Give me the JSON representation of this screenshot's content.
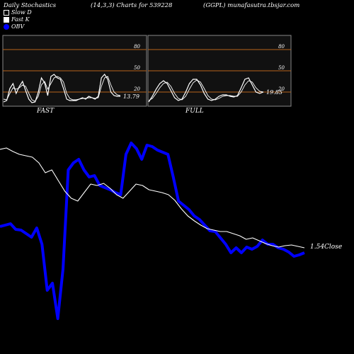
{
  "header": {
    "left": "Daily Stochastics",
    "center": "(14,3,3) Charts for 539228",
    "right": "(GGPL) munafasutra.tbsjar.com"
  },
  "legend": {
    "items": [
      {
        "label": "Slow  D",
        "swatch": "black"
      },
      {
        "label": "Fast K",
        "swatch": "white"
      },
      {
        "label": "OBV",
        "swatch": "blue"
      }
    ]
  },
  "colors": {
    "background": "#000000",
    "panel_fill": "#111111",
    "panel_border": "#888888",
    "level_line": "#b8621a",
    "price_line": "#ffffff",
    "obv_line": "#0000ff"
  },
  "chart_data": [
    {
      "type": "line",
      "panel": "fast",
      "title": "FAST",
      "yticks": [
        80,
        50,
        20
      ],
      "ylim": [
        0,
        100
      ],
      "last_value_label": "13.79",
      "series": [
        {
          "values": [
            6,
            8,
            25,
            32,
            18,
            28,
            35,
            22,
            10,
            5,
            6,
            20,
            40,
            33,
            15,
            42,
            45,
            40,
            38,
            25,
            10,
            8,
            8,
            8,
            10,
            12,
            10,
            14,
            12,
            10,
            14,
            40,
            45,
            38,
            20,
            15,
            14,
            14
          ]
        },
        {
          "values": [
            10,
            9,
            18,
            26,
            24,
            26,
            30,
            28,
            18,
            9,
            7,
            14,
            30,
            35,
            24,
            32,
            40,
            42,
            40,
            34,
            18,
            11,
            9,
            9,
            10,
            11,
            11,
            12,
            12,
            11,
            12,
            28,
            40,
            42,
            30,
            20,
            16,
            15
          ]
        }
      ]
    },
    {
      "type": "line",
      "panel": "full",
      "title": "FULL",
      "yticks": [
        80,
        50,
        20
      ],
      "ylim": [
        0,
        100
      ],
      "last_value_label": "19.85",
      "series": [
        {
          "values": [
            6,
            14,
            24,
            32,
            36,
            32,
            22,
            12,
            8,
            10,
            20,
            32,
            38,
            38,
            30,
            18,
            10,
            8,
            10,
            14,
            16,
            16,
            14,
            13,
            15,
            26,
            38,
            40,
            30,
            20,
            18,
            20
          ]
        },
        {
          "values": [
            8,
            11,
            18,
            26,
            32,
            34,
            28,
            18,
            11,
            9,
            14,
            24,
            33,
            37,
            34,
            25,
            15,
            10,
            9,
            11,
            14,
            15,
            15,
            14,
            14,
            20,
            30,
            36,
            34,
            26,
            21,
            20
          ]
        }
      ]
    },
    {
      "type": "line",
      "panel": "price_obv",
      "price_last_label": "1.54Close",
      "series": [
        {
          "values": [
            211,
            209,
            214,
            218,
            220,
            222,
            230,
            244,
            240,
            255,
            270,
            280,
            284,
            272,
            260,
            262,
            259,
            266,
            275,
            280,
            270,
            260,
            262,
            268,
            270,
            272,
            275,
            283,
            295,
            305,
            312,
            318,
            323,
            325,
            327,
            327,
            330,
            333,
            338,
            336,
            340,
            344,
            347,
            349,
            347,
            346,
            348,
            350
          ]
        },
        {
          "values": [
            320,
            318,
            316,
            324,
            325,
            330,
            335,
            322,
            345,
            410,
            400,
            450,
            380,
            240,
            230,
            225,
            240,
            250,
            248,
            262,
            265,
            268,
            272,
            275,
            218,
            202,
            210,
            225,
            205,
            207,
            212,
            215,
            218,
            250,
            284,
            290,
            296,
            305,
            310,
            318,
            326,
            327,
            336,
            345,
            357,
            350,
            357,
            349,
            352,
            348,
            339,
            345,
            345,
            350,
            352,
            356,
            362,
            360,
            357
          ]
        }
      ]
    }
  ]
}
